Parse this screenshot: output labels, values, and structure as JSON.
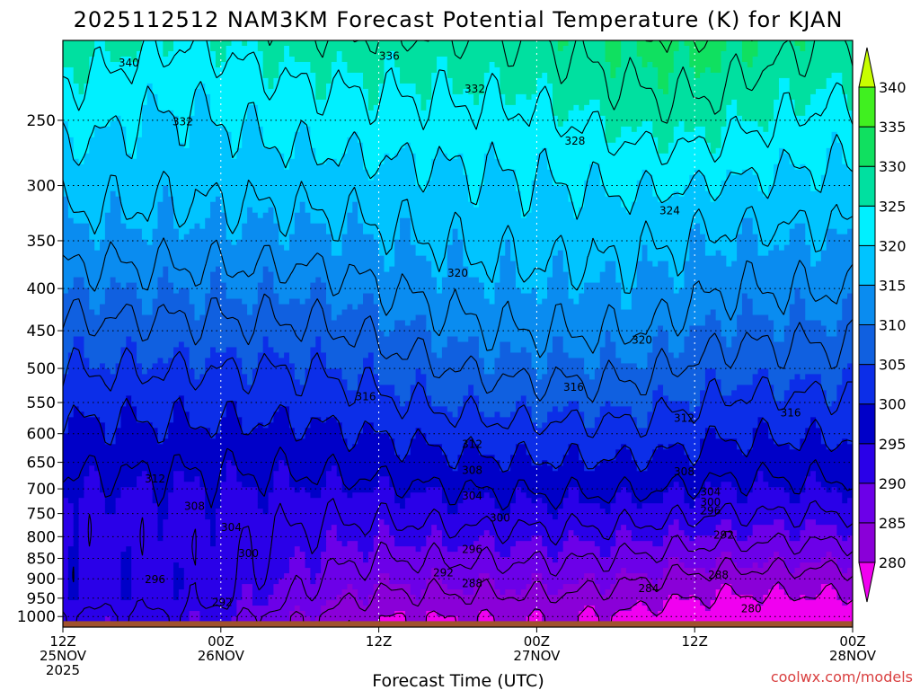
{
  "chart_data": {
    "type": "heatmap",
    "title": "2025112512 NAM3KM Forecast Potential Temperature (K) for KJAN",
    "xlabel": "Forecast Time (UTC)",
    "ylabel": "",
    "y_scale": "log",
    "ylim": [
      1030,
      200
    ],
    "xlim": [
      0,
      60
    ],
    "y_ticks": [
      250,
      300,
      350,
      400,
      450,
      500,
      550,
      600,
      650,
      700,
      750,
      800,
      850,
      900,
      950,
      1000
    ],
    "x_ticks": [
      {
        "x": 0,
        "line1": "12Z",
        "line2": "25NOV",
        "line3": "2025"
      },
      {
        "x": 12,
        "line1": "00Z",
        "line2": "26NOV",
        "line3": ""
      },
      {
        "x": 24,
        "line1": "12Z",
        "line2": "",
        "line3": ""
      },
      {
        "x": 36,
        "line1": "00Z",
        "line2": "27NOV",
        "line3": ""
      },
      {
        "x": 48,
        "line1": "12Z",
        "line2": "",
        "line3": ""
      },
      {
        "x": 60,
        "line1": "00Z",
        "line2": "28NOV",
        "line3": ""
      }
    ],
    "colorbar": {
      "levels": [
        280,
        285,
        290,
        295,
        300,
        305,
        310,
        315,
        320,
        325,
        330,
        335,
        340
      ],
      "labels": [
        "280",
        "285",
        "290",
        "295",
        "300",
        "305",
        "310",
        "315",
        "320",
        "325",
        "330",
        "335",
        "340"
      ],
      "colors": [
        "#8a00d8",
        "#6c00e8",
        "#2a00e8",
        "#0000c8",
        "#0c2ee8",
        "#1060e0",
        "#0a8cf0",
        "#00c4ff",
        "#00f0ff",
        "#00e0a0",
        "#10e060",
        "#40f020",
        "#a8f000"
      ],
      "low_color": "#f000f0",
      "high_color": "#c8ff00"
    },
    "contour_levels": [
      280,
      284,
      288,
      292,
      296,
      300,
      304,
      308,
      312,
      316,
      320,
      324,
      328,
      332,
      336,
      340
    ],
    "contour_labels": [
      {
        "text": "340",
        "x": 5.0,
        "p": 213
      },
      {
        "text": "336",
        "x": 24.8,
        "p": 209
      },
      {
        "text": "332",
        "x": 31.3,
        "p": 229
      },
      {
        "text": "332",
        "x": 9.1,
        "p": 251
      },
      {
        "text": "328",
        "x": 38.9,
        "p": 265
      },
      {
        "text": "324",
        "x": 46.1,
        "p": 322
      },
      {
        "text": "320",
        "x": 30.0,
        "p": 383
      },
      {
        "text": "320",
        "x": 44.0,
        "p": 462
      },
      {
        "text": "316",
        "x": 23.0,
        "p": 541
      },
      {
        "text": "316",
        "x": 38.8,
        "p": 527
      },
      {
        "text": "316",
        "x": 55.3,
        "p": 566
      },
      {
        "text": "312",
        "x": 47.2,
        "p": 575
      },
      {
        "text": "312",
        "x": 31.1,
        "p": 618
      },
      {
        "text": "312",
        "x": 7.0,
        "p": 681
      },
      {
        "text": "308",
        "x": 31.1,
        "p": 665
      },
      {
        "text": "308",
        "x": 47.2,
        "p": 667
      },
      {
        "text": "308",
        "x": 10.0,
        "p": 735
      },
      {
        "text": "304",
        "x": 31.1,
        "p": 714
      },
      {
        "text": "304",
        "x": 49.2,
        "p": 706
      },
      {
        "text": "304",
        "x": 12.8,
        "p": 780
      },
      {
        "text": "300",
        "x": 33.2,
        "p": 759
      },
      {
        "text": "300",
        "x": 49.2,
        "p": 727
      },
      {
        "text": "300",
        "x": 14.1,
        "p": 838
      },
      {
        "text": "296",
        "x": 49.2,
        "p": 744
      },
      {
        "text": "296",
        "x": 31.1,
        "p": 829
      },
      {
        "text": "296",
        "x": 7.0,
        "p": 902
      },
      {
        "text": "292",
        "x": 50.2,
        "p": 796
      },
      {
        "text": "292",
        "x": 28.9,
        "p": 885
      },
      {
        "text": "292",
        "x": 12.1,
        "p": 961
      },
      {
        "text": "288",
        "x": 31.1,
        "p": 912
      },
      {
        "text": "288",
        "x": 49.8,
        "p": 891
      },
      {
        "text": "284",
        "x": 44.5,
        "p": 925
      },
      {
        "text": "280",
        "x": 52.3,
        "p": 978
      }
    ]
  },
  "credit": "coolwx.com/models"
}
